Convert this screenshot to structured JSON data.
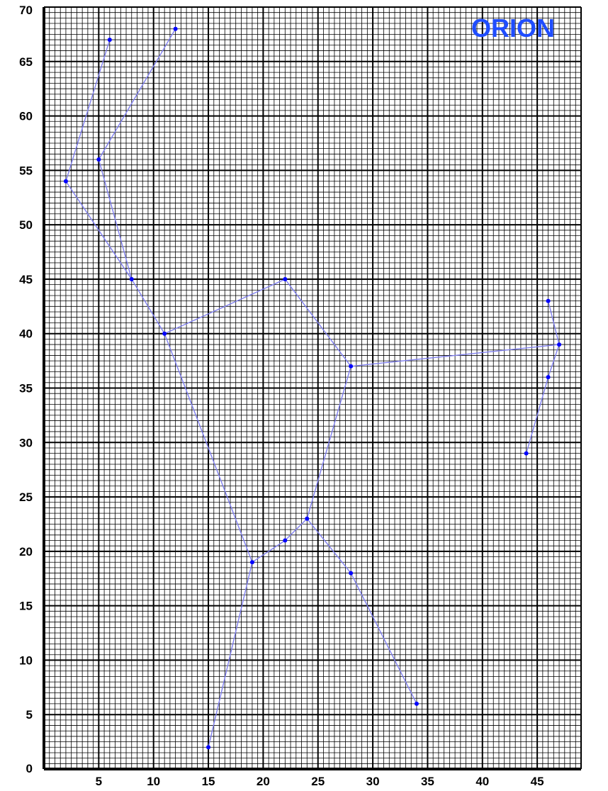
{
  "chart_data": {
    "type": "line",
    "title": "ORION",
    "title_position": "top-right",
    "title_color": "#1f4dff",
    "line_color": "#8080f0",
    "marker_color": "#0000ff",
    "grid": true,
    "grid_major_color": "#000000",
    "grid_minor_color": "#000000",
    "xlim": [
      0,
      49
    ],
    "ylim": [
      0,
      70
    ],
    "x_ticks": [
      5,
      10,
      15,
      20,
      25,
      30,
      35,
      40,
      45
    ],
    "y_ticks": [
      0,
      5,
      10,
      15,
      20,
      25,
      30,
      35,
      40,
      45,
      50,
      55,
      60,
      65,
      70
    ],
    "series": [
      {
        "points": [
          [
            6,
            67
          ],
          [
            2,
            54
          ],
          [
            8,
            45
          ],
          [
            5,
            56
          ],
          [
            12,
            68
          ]
        ]
      },
      {
        "points": [
          [
            8,
            45
          ],
          [
            11,
            40
          ],
          [
            22,
            45
          ],
          [
            28,
            37
          ],
          [
            47,
            39
          ],
          [
            46,
            43
          ]
        ]
      },
      {
        "points": [
          [
            47,
            39
          ],
          [
            46,
            36
          ],
          [
            44,
            29
          ]
        ]
      },
      {
        "points": [
          [
            11,
            40
          ],
          [
            19,
            19
          ],
          [
            15,
            2
          ]
        ]
      },
      {
        "points": [
          [
            19,
            19
          ],
          [
            22,
            21
          ],
          [
            24,
            23
          ],
          [
            28,
            37
          ]
        ]
      },
      {
        "points": [
          [
            24,
            23
          ],
          [
            28,
            18
          ],
          [
            34,
            6
          ]
        ]
      }
    ]
  }
}
